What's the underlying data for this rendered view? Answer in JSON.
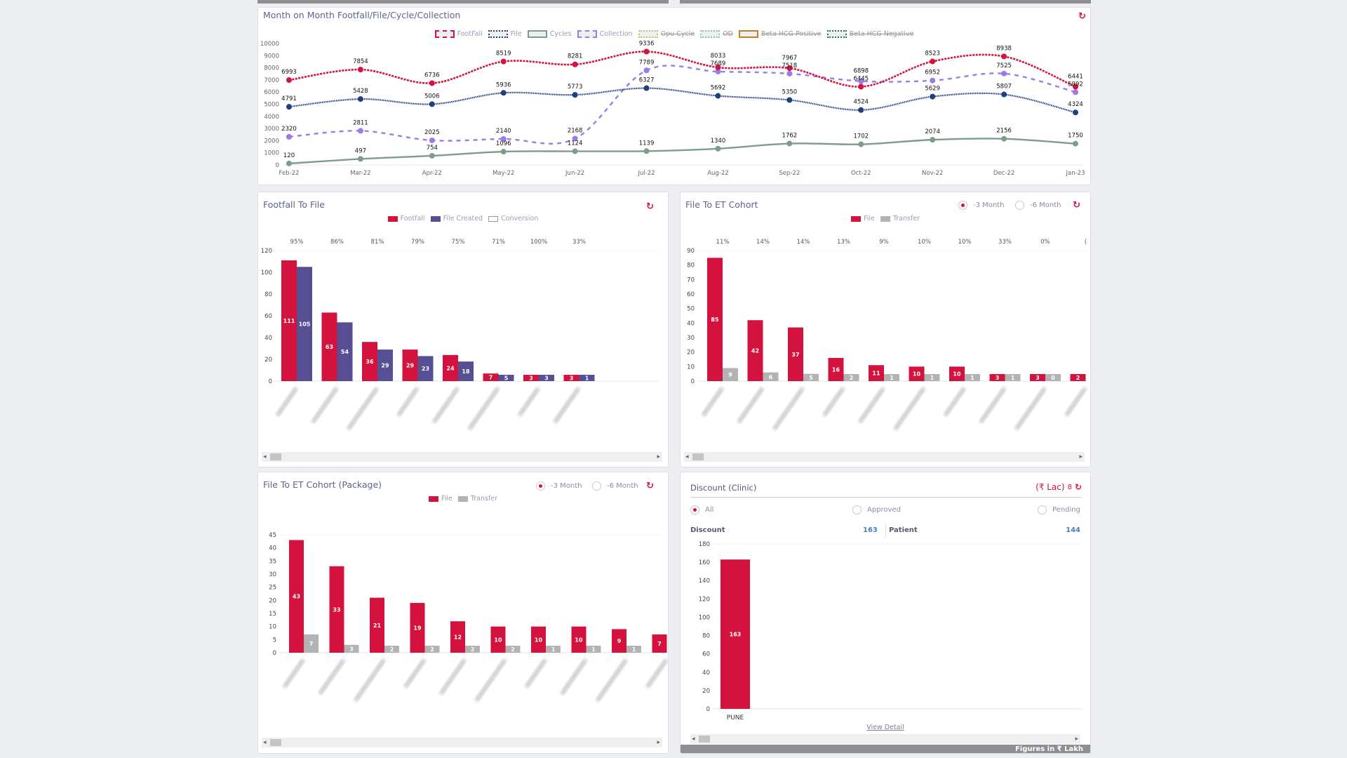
{
  "colors": {
    "footfall": "#d4123e",
    "file": "#1f3f80",
    "cycles": "#7c9d8a",
    "collection": "#9b7be8",
    "file_created": "#574f94",
    "transfer": "#b3b3b3",
    "accent": "#d4123e",
    "link": "#4a7dbd"
  },
  "line_panel": {
    "title": "Month on Month Footfall/File/Cycle/Collection",
    "legend": [
      {
        "label": "FootFall",
        "color": "#d4123e",
        "border": "dashed",
        "hidden": false
      },
      {
        "label": "File",
        "color": "#1f3f80",
        "border": "dotted",
        "hidden": false
      },
      {
        "label": "Cycles",
        "color": "#7c9d8a",
        "border": "solid",
        "hidden": false
      },
      {
        "label": "Collection",
        "color": "#9b7be8",
        "border": "dashed",
        "hidden": false
      },
      {
        "label": "Opu Cycle",
        "color": "#c8c070",
        "border": "dotted",
        "hidden": true
      },
      {
        "label": "OD",
        "color": "#8ec4b4",
        "border": "dotted",
        "hidden": true
      },
      {
        "label": "Beta HCG Positive",
        "color": "#b8852e",
        "border": "solid",
        "hidden": true
      },
      {
        "label": "Beta HCG Negative",
        "color": "#1f6f6a",
        "border": "dotted",
        "hidden": true
      }
    ]
  },
  "footfall_panel": {
    "title": "Footfall To File",
    "legend": [
      {
        "label": "Footfall",
        "color": "#d4123e"
      },
      {
        "label": "File Created",
        "color": "#574f94"
      },
      {
        "label": "Conversion",
        "color": "outline"
      }
    ]
  },
  "et_panel": {
    "title": "File To ET Cohort",
    "legend": [
      {
        "label": "File",
        "color": "#d4123e"
      },
      {
        "label": "Transfer",
        "color": "#b3b3b3"
      }
    ],
    "radio": [
      {
        "label": "-3 Month",
        "selected": true
      },
      {
        "label": "-6 Month",
        "selected": false
      }
    ]
  },
  "pkg_panel": {
    "title": "File To ET Cohort (Package)",
    "legend": [
      {
        "label": "File",
        "color": "#d4123e"
      },
      {
        "label": "Transfer",
        "color": "#b3b3b3"
      }
    ],
    "radio": [
      {
        "label": "-3 Month",
        "selected": true
      },
      {
        "label": "-6 Month",
        "selected": false
      }
    ]
  },
  "discount_panel": {
    "title": "Discount (Clinic)",
    "unit": "(₹ Lac)",
    "unit_value": "8",
    "radio": [
      {
        "label": "All",
        "selected": true
      },
      {
        "label": "Approved",
        "selected": false
      },
      {
        "label": "Pending",
        "selected": false
      }
    ],
    "discount_label": "Discount",
    "discount_value": "163",
    "patient_label": "Patient",
    "patient_value": "144",
    "view_detail": "View Detail",
    "footer": "Figures in ₹ Lakh"
  },
  "chart_data": [
    {
      "type": "line",
      "id": "mom",
      "categories": [
        "Feb-22",
        "Mar-22",
        "Apr-22",
        "May-22",
        "Jun-22",
        "Jul-22",
        "Aug-22",
        "Sep-22",
        "Oct-22",
        "Nov-22",
        "Dec-22",
        "Jan-23"
      ],
      "ylim": [
        0,
        10000
      ],
      "yticks": [
        0,
        1000,
        2000,
        3000,
        4000,
        5000,
        6000,
        7000,
        8000,
        9000,
        10000
      ],
      "grid": false,
      "series": [
        {
          "name": "FootFall",
          "values": [
            6993,
            7854,
            6736,
            8519,
            8281,
            9336,
            8033,
            7967,
            6445,
            8523,
            8938,
            6441
          ]
        },
        {
          "name": "File",
          "values": [
            4791,
            5428,
            5006,
            5936,
            5773,
            6327,
            5692,
            5350,
            4524,
            5629,
            5807,
            4324
          ]
        },
        {
          "name": "Cycles",
          "values": [
            120,
            497,
            754,
            1096,
            1124,
            1139,
            1340,
            1762,
            1702,
            2074,
            2156,
            1750
          ]
        },
        {
          "name": "Collection",
          "values": [
            2320,
            2811,
            2025,
            2140,
            2168,
            7789,
            7689,
            7518,
            6898,
            6952,
            7525,
            5992
          ]
        }
      ]
    },
    {
      "type": "bar",
      "id": "footfall",
      "ylim": [
        0,
        120
      ],
      "yticks": [
        0,
        20,
        40,
        60,
        80,
        100,
        120
      ],
      "series": [
        {
          "name": "Footfall",
          "values": [
            111,
            63,
            36,
            29,
            24,
            7,
            3,
            3
          ]
        },
        {
          "name": "File Created",
          "values": [
            105,
            54,
            29,
            23,
            18,
            5,
            3,
            1
          ]
        }
      ],
      "conversion": [
        "95%",
        "86%",
        "81%",
        "79%",
        "75%",
        "71%",
        "100%",
        "33%"
      ]
    },
    {
      "type": "bar",
      "id": "et",
      "ylim": [
        0,
        90
      ],
      "yticks": [
        0,
        10,
        20,
        30,
        40,
        50,
        60,
        70,
        80,
        90
      ],
      "series": [
        {
          "name": "File",
          "values": [
            85,
            42,
            37,
            16,
            11,
            10,
            10,
            3,
            3,
            2
          ]
        },
        {
          "name": "Transfer",
          "values": [
            9,
            6,
            5,
            2,
            1,
            1,
            1,
            1,
            0,
            null
          ]
        }
      ],
      "conversion": [
        "11%",
        "14%",
        "14%",
        "13%",
        "9%",
        "10%",
        "10%",
        "33%",
        "0%",
        "("
      ]
    },
    {
      "type": "bar",
      "id": "pkg",
      "ylim": [
        0,
        45
      ],
      "yticks": [
        0,
        5,
        10,
        15,
        20,
        25,
        30,
        35,
        40,
        45
      ],
      "series": [
        {
          "name": "File",
          "values": [
            43,
            33,
            21,
            19,
            12,
            10,
            10,
            10,
            9,
            7
          ]
        },
        {
          "name": "Transfer",
          "values": [
            7,
            3,
            2,
            2,
            2,
            2,
            1,
            1,
            1,
            null
          ]
        }
      ]
    },
    {
      "type": "bar",
      "id": "discount",
      "ylim": [
        0,
        180
      ],
      "yticks": [
        0,
        20,
        40,
        60,
        80,
        100,
        120,
        140,
        160,
        180
      ],
      "categories": [
        "PUNE"
      ],
      "series": [
        {
          "name": "Discount",
          "values": [
            163
          ]
        }
      ]
    }
  ]
}
